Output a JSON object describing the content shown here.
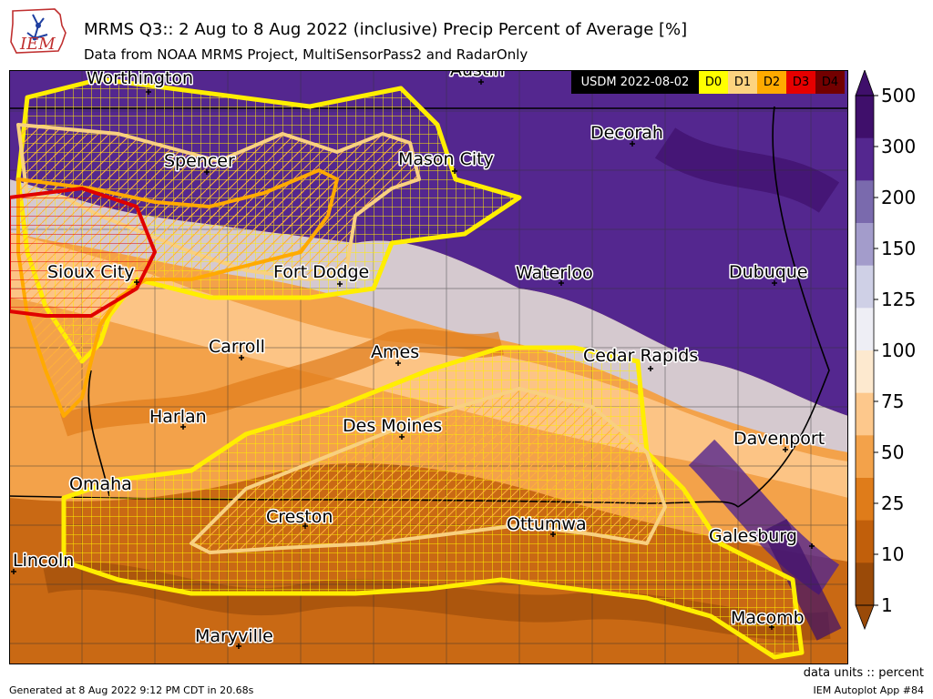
{
  "header": {
    "logo_text": "IEM",
    "title": "MRMS Q3:: 2 Aug to 8 Aug 2022 (inclusive) Precip Percent of Average [%]",
    "subtitle": "Data from NOAA MRMS Project, MultiSensorPass2 and RadarOnly"
  },
  "legend": {
    "label": "USDM 2022-08-02",
    "items": [
      {
        "label": "D0",
        "color": "#FFFF00"
      },
      {
        "label": "D1",
        "color": "#FCD37F"
      },
      {
        "label": "D2",
        "color": "#FFAA00"
      },
      {
        "label": "D3",
        "color": "#E60000"
      },
      {
        "label": "D4",
        "color": "#730000"
      }
    ]
  },
  "colorbar": {
    "ticks": [
      "500",
      "300",
      "200",
      "150",
      "125",
      "100",
      "75",
      "50",
      "25",
      "10",
      "1"
    ],
    "colors": [
      "#3f0f6b",
      "#54278f",
      "#7a6aad",
      "#a39ccb",
      "#cfd0e6",
      "#eeeef5",
      "#fde9cf",
      "#fdc88c",
      "#f3a24a",
      "#df7c1a",
      "#c15f0b",
      "#9a4a08"
    ]
  },
  "cities": [
    {
      "name": "Worthington"
    },
    {
      "name": "Austin"
    },
    {
      "name": "Spencer"
    },
    {
      "name": "Mason City"
    },
    {
      "name": "Decorah"
    },
    {
      "name": "Sioux City"
    },
    {
      "name": "Fort Dodge"
    },
    {
      "name": "Waterloo"
    },
    {
      "name": "Dubuque"
    },
    {
      "name": "Carroll"
    },
    {
      "name": "Ames"
    },
    {
      "name": "Cedar Rapids"
    },
    {
      "name": "Harlan"
    },
    {
      "name": "Des Moines"
    },
    {
      "name": "Davenport"
    },
    {
      "name": "Omaha"
    },
    {
      "name": "Creston"
    },
    {
      "name": "Ottumwa"
    },
    {
      "name": "Galesburg"
    },
    {
      "name": "Lincoln"
    },
    {
      "name": "Macomb"
    },
    {
      "name": "Maryville"
    }
  ],
  "footer": {
    "generated": "Generated at 8 Aug 2022 9:12 PM CDT in 20.68s",
    "units": "data units :: percent",
    "app": "IEM Autoplot App #84"
  }
}
